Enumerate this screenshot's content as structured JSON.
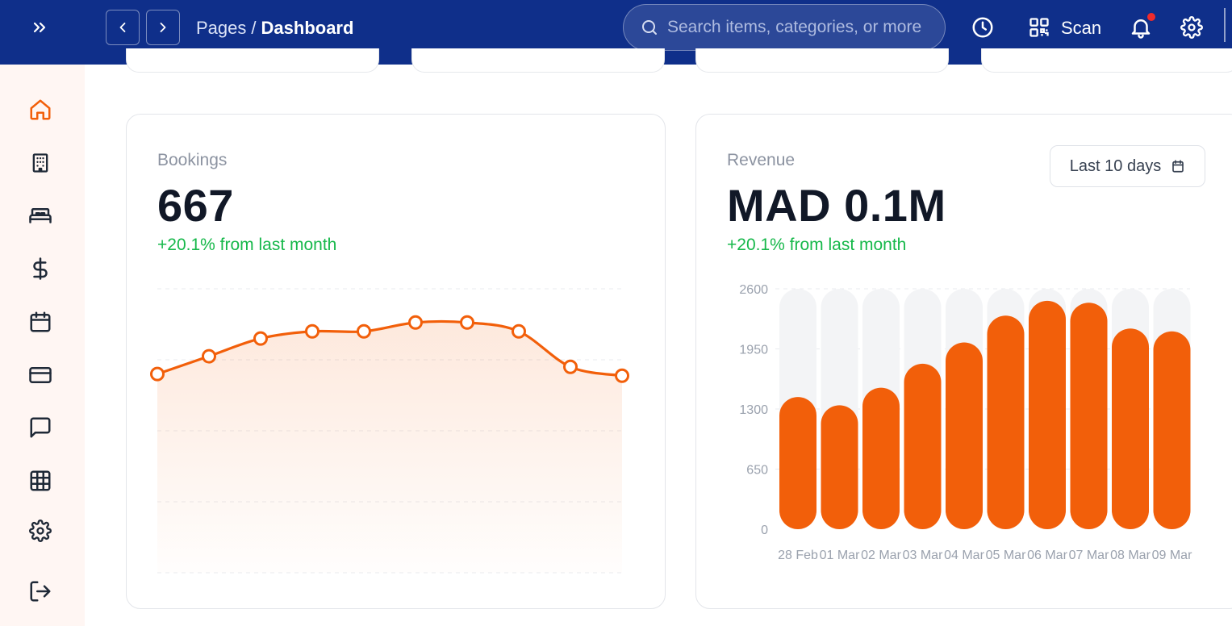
{
  "topbar": {
    "expand_icon": "double-chevron-right-icon",
    "back_icon": "chevron-left-icon",
    "forward_icon": "chevron-right-icon",
    "breadcrumb": {
      "parent": "Pages",
      "separator": "/",
      "current": "Dashboard"
    },
    "search": {
      "placeholder": "Search items, categories, or more",
      "value": ""
    },
    "history_icon": "clock-icon",
    "scan": {
      "icon": "qr-code-icon",
      "label": "Scan"
    },
    "notifications": {
      "icon": "bell-icon",
      "has_unread": true,
      "dot_color": "#ef2b2b"
    },
    "settings_icon": "gear-icon"
  },
  "sidebar": {
    "items": [
      {
        "id": "home",
        "icon": "home-icon",
        "active": true
      },
      {
        "id": "buildings",
        "icon": "building-icon",
        "active": false
      },
      {
        "id": "rooms",
        "icon": "bed-icon",
        "active": false
      },
      {
        "id": "payments",
        "icon": "dollar-icon",
        "active": false
      },
      {
        "id": "calendar",
        "icon": "calendar-icon",
        "active": false
      },
      {
        "id": "cards",
        "icon": "credit-card-icon",
        "active": false
      },
      {
        "id": "messages",
        "icon": "message-square-icon",
        "active": false
      },
      {
        "id": "grid",
        "icon": "grid-icon",
        "active": false
      },
      {
        "id": "settings",
        "icon": "gear-icon",
        "active": false
      },
      {
        "id": "logout",
        "icon": "logout-icon",
        "active": false
      }
    ]
  },
  "colors": {
    "topbar": "#0f2f8a",
    "accent": "#f25f0a",
    "positive": "#16b84a",
    "bar_track": "#f3f4f6"
  },
  "bookings": {
    "label": "Bookings",
    "value": "667",
    "delta": "+20.1% from last month"
  },
  "revenue": {
    "label": "Revenue",
    "value": "MAD 0.1M",
    "delta": "+20.1% from last month",
    "range_label": "Last 10 days",
    "range_icon": "calendar-icon"
  },
  "chart_data": [
    {
      "type": "area",
      "points": [
        56,
        61,
        66,
        68,
        68,
        70.5,
        70.5,
        68,
        58,
        55.5
      ],
      "ylim": [
        0,
        80
      ],
      "grid": true
    },
    {
      "type": "bar",
      "categories": [
        "28 Feb",
        "01 Mar",
        "02 Mar",
        "03 Mar",
        "04 Mar",
        "05 Mar",
        "06 Mar",
        "07 Mar",
        "08 Mar",
        "09 Mar"
      ],
      "values": [
        1430,
        1340,
        1530,
        1790,
        2020,
        2310,
        2470,
        2450,
        2170,
        2140
      ],
      "yticks": [
        "2600",
        "1950",
        "1300",
        "650",
        "0"
      ],
      "ylim": [
        0,
        2600
      ],
      "grid": true
    }
  ]
}
